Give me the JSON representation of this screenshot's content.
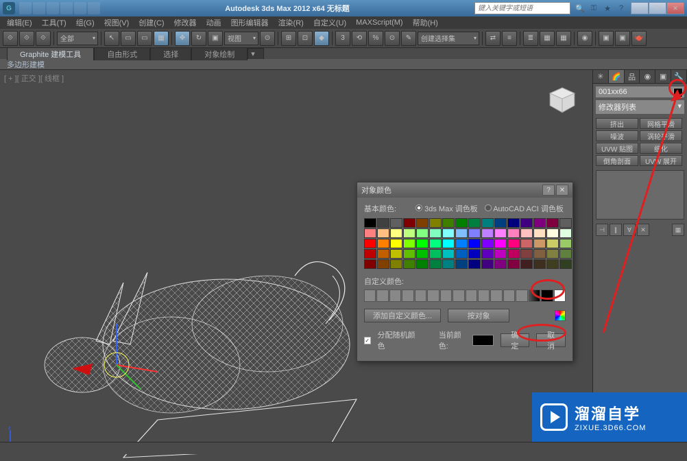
{
  "title": "Autodesk 3ds Max  2012 x64   无标题",
  "search_placeholder": "键入关键字或短语",
  "menus": [
    "编辑(E)",
    "工具(T)",
    "组(G)",
    "视图(V)",
    "创建(C)",
    "修改器",
    "动画",
    "图形编辑器",
    "渲染(R)",
    "自定义(U)",
    "MAXScript(M)",
    "帮助(H)"
  ],
  "toolbar": {
    "scope": "全部",
    "view": "视图",
    "selset": "创建选择集"
  },
  "ribbon": {
    "tabs": [
      "Graphite 建模工具",
      "自由形式",
      "选择",
      "对象绘制"
    ],
    "sub": "多边形建模"
  },
  "viewport_label": "[ + ][ 正交 ][ 线框 ]",
  "right": {
    "obj_name": "001xx66",
    "mod_list": "修改器列表",
    "mods": [
      "挤出",
      "网格平滑",
      "噪波",
      "涡轮平滑",
      "UVW 贴图",
      "细化",
      "倒角剖面",
      "UVW 展开"
    ]
  },
  "dialog": {
    "title": "对象颜色",
    "basic": "基本颜色:",
    "pal1": "3ds Max 调色板",
    "pal2": "AutoCAD ACI 调色板",
    "custom": "自定义颜色:",
    "add_custom": "添加自定义颜色...",
    "by_object": "按对象",
    "random": "分配随机颜色",
    "current": "当前颜色:",
    "ok": "确定",
    "cancel": "取消"
  },
  "watermark": {
    "big": "溜溜自学",
    "small": "ZIXUE.3D66.COM"
  },
  "palette_colors": [
    "#000000",
    "#404040",
    "#606060",
    "#7f0000",
    "#7f3f00",
    "#7f7f00",
    "#3f7f00",
    "#007f00",
    "#007f3f",
    "#007f7f",
    "#003f7f",
    "#00007f",
    "#3f007f",
    "#7f007f",
    "#7f003f",
    "#5f5f5f",
    "#ff8080",
    "#ffbf80",
    "#ffff80",
    "#bfff80",
    "#80ff80",
    "#80ffbf",
    "#80ffff",
    "#80bfff",
    "#8080ff",
    "#bf80ff",
    "#ff80ff",
    "#ff80bf",
    "#ffc0c0",
    "#ffe0c0",
    "#ffffe0",
    "#e0ffe0",
    "#ff0000",
    "#ff7f00",
    "#ffff00",
    "#7fff00",
    "#00ff00",
    "#00ff7f",
    "#00ffff",
    "#007fff",
    "#0000ff",
    "#7f00ff",
    "#ff00ff",
    "#ff007f",
    "#cc6666",
    "#cc9966",
    "#cccc66",
    "#99cc66",
    "#bf0000",
    "#bf5f00",
    "#bfbf00",
    "#5fbf00",
    "#00bf00",
    "#00bf5f",
    "#00bfbf",
    "#005fbf",
    "#0000bf",
    "#5f00bf",
    "#bf00bf",
    "#bf005f",
    "#804040",
    "#806040",
    "#808040",
    "#608040",
    "#800000",
    "#804000",
    "#808000",
    "#408000",
    "#008000",
    "#008040",
    "#008080",
    "#004080",
    "#000080",
    "#400080",
    "#800080",
    "#800040",
    "#3f1f1f",
    "#3f2f1f",
    "#3f3f1f",
    "#2f3f1f"
  ]
}
